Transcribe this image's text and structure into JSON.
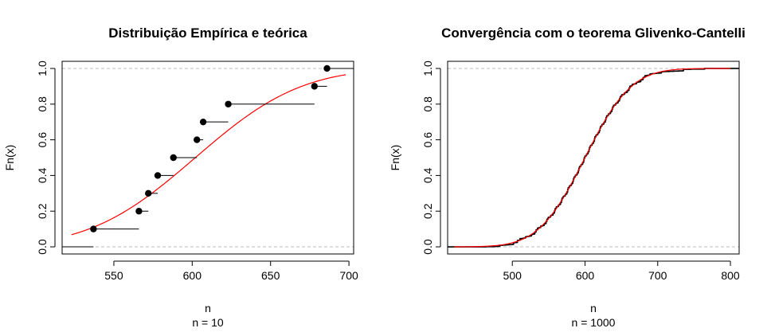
{
  "chart_data": [
    {
      "type": "step",
      "title": "Distribuição Empírica e teórica",
      "xlabel": "n",
      "sublabel": "n = 10",
      "ylabel": "Fn(x)",
      "xlim": [
        517,
        703
      ],
      "ylim": [
        -0.04,
        1.04
      ],
      "xticks": [
        550,
        600,
        650,
        700
      ],
      "yticks": [
        0.0,
        0.2,
        0.4,
        0.6,
        0.8,
        1.0
      ],
      "ytick_labels": [
        "0.0",
        "0.2",
        "0.4",
        "0.6",
        "0.8",
        "1.0"
      ],
      "dashed_reference_lines": [
        0,
        1
      ],
      "colors": {
        "empirical": "#000000",
        "theoretical": "#ff0000",
        "reference": "#bebebe"
      },
      "empirical_ecdf": {
        "x": [
          537,
          566,
          572,
          578,
          588,
          603,
          607,
          623,
          678,
          686
        ],
        "y": [
          0.1,
          0.2,
          0.3,
          0.4,
          0.5,
          0.6,
          0.7,
          0.8,
          0.9,
          1.0
        ],
        "left_extension_end": 517,
        "right_extension_end": 703
      },
      "theoretical_cdf": {
        "distribution": "normal",
        "mean": 602,
        "sd": 53,
        "x_range": [
          523,
          698
        ]
      }
    },
    {
      "type": "step",
      "title": "Convergência com o teorema Glivenko-Cantelli",
      "xlabel": "n",
      "sublabel": "n = 1000",
      "ylabel": "Fn(x)",
      "xlim": [
        411,
        812
      ],
      "ylim": [
        -0.04,
        1.04
      ],
      "xticks": [
        500,
        600,
        700,
        800
      ],
      "yticks": [
        0.0,
        0.2,
        0.4,
        0.6,
        0.8,
        1.0
      ],
      "ytick_labels": [
        "0.0",
        "0.2",
        "0.4",
        "0.6",
        "0.8",
        "1.0"
      ],
      "dashed_reference_lines": [
        0,
        1
      ],
      "colors": {
        "empirical": "#000000",
        "theoretical": "#ff0000",
        "reference": "#bebebe"
      },
      "empirical_ecdf": {
        "n": 1000,
        "x_range": [
          420,
          800
        ],
        "mean": 600,
        "sd": 50
      },
      "theoretical_cdf": {
        "distribution": "normal",
        "mean": 600,
        "sd": 50,
        "x_range": [
          420,
          800
        ]
      }
    }
  ]
}
